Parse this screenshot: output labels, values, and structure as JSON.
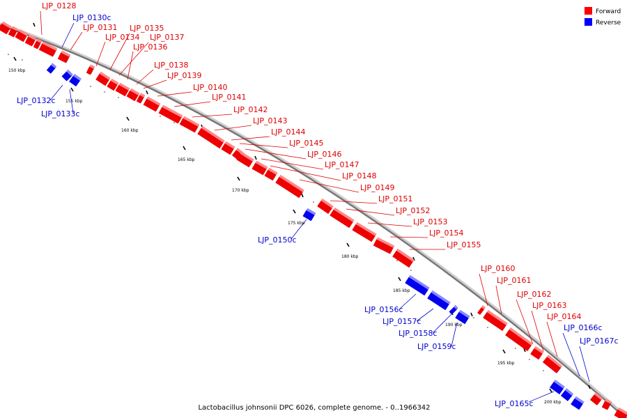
{
  "caption": "Lactobacillus johnsonii DPC 6026, complete genome. - 0..1966342",
  "legend": [
    {
      "label": "Forward",
      "color": "#ff0000"
    },
    {
      "label": "Reverse",
      "color": "#0000ff"
    }
  ],
  "scale_labels": [
    "150 kbp",
    "155 kbp",
    "160 kbp",
    "165 kbp",
    "170 kbp",
    "175 kbp",
    "180 kbp",
    "185 kbp",
    "190 kbp",
    "195 kbp",
    "200 kbp"
  ],
  "genes": [
    {
      "name": "LJP_0128",
      "strand": "forward"
    },
    {
      "name": "LJP_0130c",
      "strand": "reverse"
    },
    {
      "name": "LJP_0131",
      "strand": "forward"
    },
    {
      "name": "LJP_0134",
      "strand": "forward"
    },
    {
      "name": "LJP_0135",
      "strand": "forward"
    },
    {
      "name": "LJP_0137",
      "strand": "forward"
    },
    {
      "name": "LJP_0136",
      "strand": "forward"
    },
    {
      "name": "LJP_0138",
      "strand": "forward"
    },
    {
      "name": "LJP_0139",
      "strand": "forward"
    },
    {
      "name": "LJP_0140",
      "strand": "forward"
    },
    {
      "name": "LJP_0141",
      "strand": "forward"
    },
    {
      "name": "LJP_0142",
      "strand": "forward"
    },
    {
      "name": "LJP_0143",
      "strand": "forward"
    },
    {
      "name": "LJP_0144",
      "strand": "forward"
    },
    {
      "name": "LJP_0145",
      "strand": "forward"
    },
    {
      "name": "LJP_0146",
      "strand": "forward"
    },
    {
      "name": "LJP_0147",
      "strand": "forward"
    },
    {
      "name": "LJP_0148",
      "strand": "forward"
    },
    {
      "name": "LJP_0149",
      "strand": "forward"
    },
    {
      "name": "LJP_0151",
      "strand": "forward"
    },
    {
      "name": "LJP_0152",
      "strand": "forward"
    },
    {
      "name": "LJP_0153",
      "strand": "forward"
    },
    {
      "name": "LJP_0154",
      "strand": "forward"
    },
    {
      "name": "LJP_0155",
      "strand": "forward"
    },
    {
      "name": "LJP_0160",
      "strand": "forward"
    },
    {
      "name": "LJP_0161",
      "strand": "forward"
    },
    {
      "name": "LJP_0162",
      "strand": "forward"
    },
    {
      "name": "LJP_0163",
      "strand": "forward"
    },
    {
      "name": "LJP_0164",
      "strand": "forward"
    },
    {
      "name": "LJP_0166c",
      "strand": "reverse"
    },
    {
      "name": "LJP_0167c",
      "strand": "reverse"
    },
    {
      "name": "LJP_0132c",
      "strand": "reverse"
    },
    {
      "name": "LJP_0133c",
      "strand": "reverse"
    },
    {
      "name": "LJP_0150c",
      "strand": "reverse"
    },
    {
      "name": "LJP_0156c",
      "strand": "reverse"
    },
    {
      "name": "LJP_0157c",
      "strand": "reverse"
    },
    {
      "name": "LJP_0158c",
      "strand": "reverse"
    },
    {
      "name": "LJP_0159c",
      "strand": "reverse"
    },
    {
      "name": "LJP_0165c",
      "strand": "reverse"
    }
  ]
}
